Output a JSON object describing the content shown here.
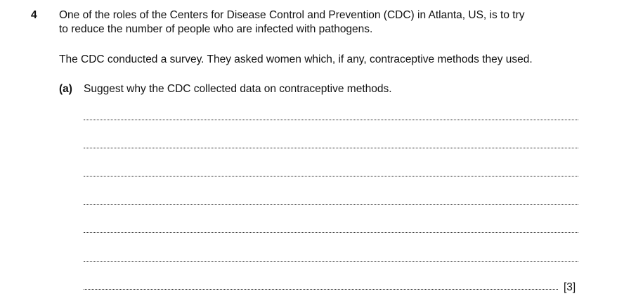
{
  "question": {
    "number": "4",
    "intro_lines": [
      "One of the roles of the Centers for Disease Control and Prevention (CDC) in Atlanta, US, is to try",
      "to reduce the number of people who are infected with pathogens."
    ],
    "survey_text": "The CDC conducted a survey. They asked women which, if any, contraceptive methods they used."
  },
  "part_a": {
    "label": "(a)",
    "text": "Suggest why the CDC collected data on contraceptive methods.",
    "marks": "[3]"
  }
}
